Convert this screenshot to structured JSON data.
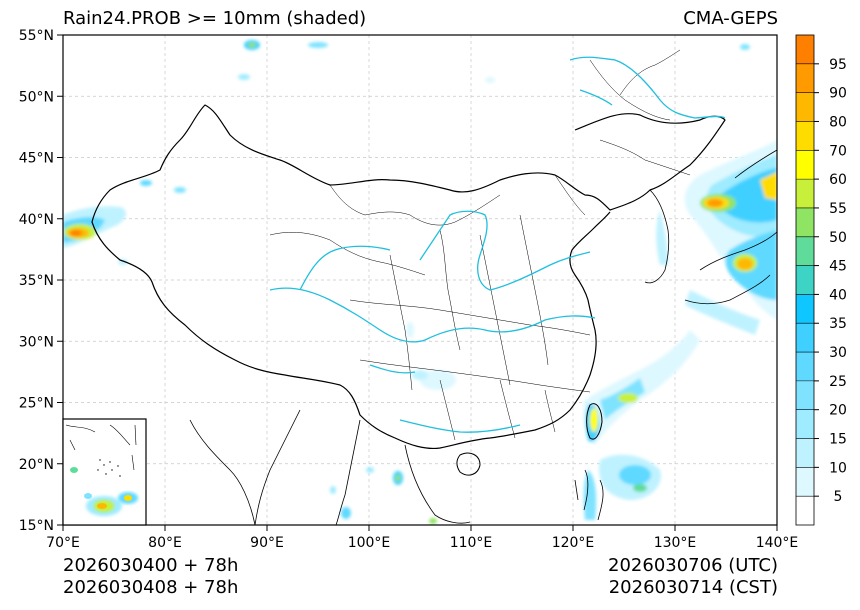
{
  "title_left": "Rain24.PROB >= 10mm (shaded)",
  "title_right": "CMA-GEPS",
  "init_time_utc": "2026030400 + 78h",
  "init_time_cst": "2026030408 + 78h",
  "valid_time_utc": "2026030706 (UTC)",
  "valid_time_cst": "2026030714 (CST)",
  "map": {
    "lon_range": [
      70,
      140
    ],
    "lat_range": [
      15,
      55
    ],
    "lon_ticks": [
      {
        "value": 70,
        "label": "70°E"
      },
      {
        "value": 80,
        "label": "80°E"
      },
      {
        "value": 90,
        "label": "90°E"
      },
      {
        "value": 100,
        "label": "100°E"
      },
      {
        "value": 110,
        "label": "110°E"
      },
      {
        "value": 120,
        "label": "120°E"
      },
      {
        "value": 130,
        "label": "130°E"
      },
      {
        "value": 140,
        "label": "140°E"
      }
    ],
    "lat_ticks": [
      {
        "value": 15,
        "label": "15°N"
      },
      {
        "value": 20,
        "label": "20°N"
      },
      {
        "value": 25,
        "label": "25°N"
      },
      {
        "value": 30,
        "label": "30°N"
      },
      {
        "value": 35,
        "label": "35°N"
      },
      {
        "value": 40,
        "label": "40°N"
      },
      {
        "value": 45,
        "label": "45°N"
      },
      {
        "value": 50,
        "label": "50°N"
      },
      {
        "value": 55,
        "label": "55°N"
      }
    ],
    "grid": "dashed"
  },
  "colorbar": {
    "levels": [
      "5",
      "10",
      "15",
      "20",
      "25",
      "30",
      "35",
      "40",
      "45",
      "50",
      "55",
      "60",
      "70",
      "80",
      "90",
      "95"
    ],
    "colors": [
      "#ffffff",
      "#def8ff",
      "#bff2ff",
      "#9febff",
      "#7fe3ff",
      "#5fd9ff",
      "#3fd0ff",
      "#10c6ff",
      "#3dd4c5",
      "#5fdc9a",
      "#90e463",
      "#c8f03a",
      "#ffff00",
      "#ffdc00",
      "#ffb800",
      "#ff9a00",
      "#ff7f00"
    ]
  },
  "colors": {
    "coastline": "#000000",
    "river": "#1fbfdf",
    "grid": "#c8c8c8"
  }
}
